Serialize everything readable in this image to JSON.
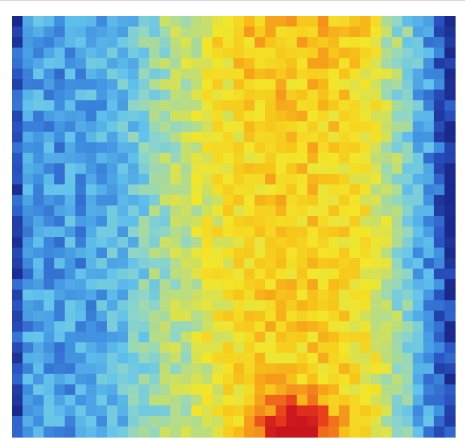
{
  "chart_data": {
    "type": "heatmap",
    "title": "",
    "xlabel": "",
    "ylabel": "",
    "grid": false,
    "legend": "none",
    "colormap": "jet",
    "value_range": [
      0,
      1
    ],
    "colormap_stops": [
      "#1a2a8c",
      "#2a55c4",
      "#3f8fe0",
      "#62c3ec",
      "#8fd6c8",
      "#c7df6a",
      "#f3e62a",
      "#f7c51a",
      "#f58a1c",
      "#e8381c",
      "#c8141c"
    ],
    "n_cols": 42,
    "n_rows": 40,
    "column_profile": [
      0.08,
      0.22,
      0.24,
      0.23,
      0.22,
      0.24,
      0.23,
      0.25,
      0.26,
      0.28,
      0.3,
      0.33,
      0.36,
      0.4,
      0.43,
      0.46,
      0.49,
      0.52,
      0.55,
      0.58,
      0.61,
      0.63,
      0.65,
      0.66,
      0.67,
      0.67,
      0.66,
      0.66,
      0.67,
      0.66,
      0.65,
      0.64,
      0.62,
      0.6,
      0.56,
      0.5,
      0.43,
      0.36,
      0.28,
      0.22,
      0.12,
      0.05
    ],
    "hotspot": {
      "center_col": 26.5,
      "center_row": 39.0,
      "peak": 0.42,
      "spread_cols": 3.6,
      "spread_rows": 3.0
    },
    "noise_amplitude": 0.09
  }
}
